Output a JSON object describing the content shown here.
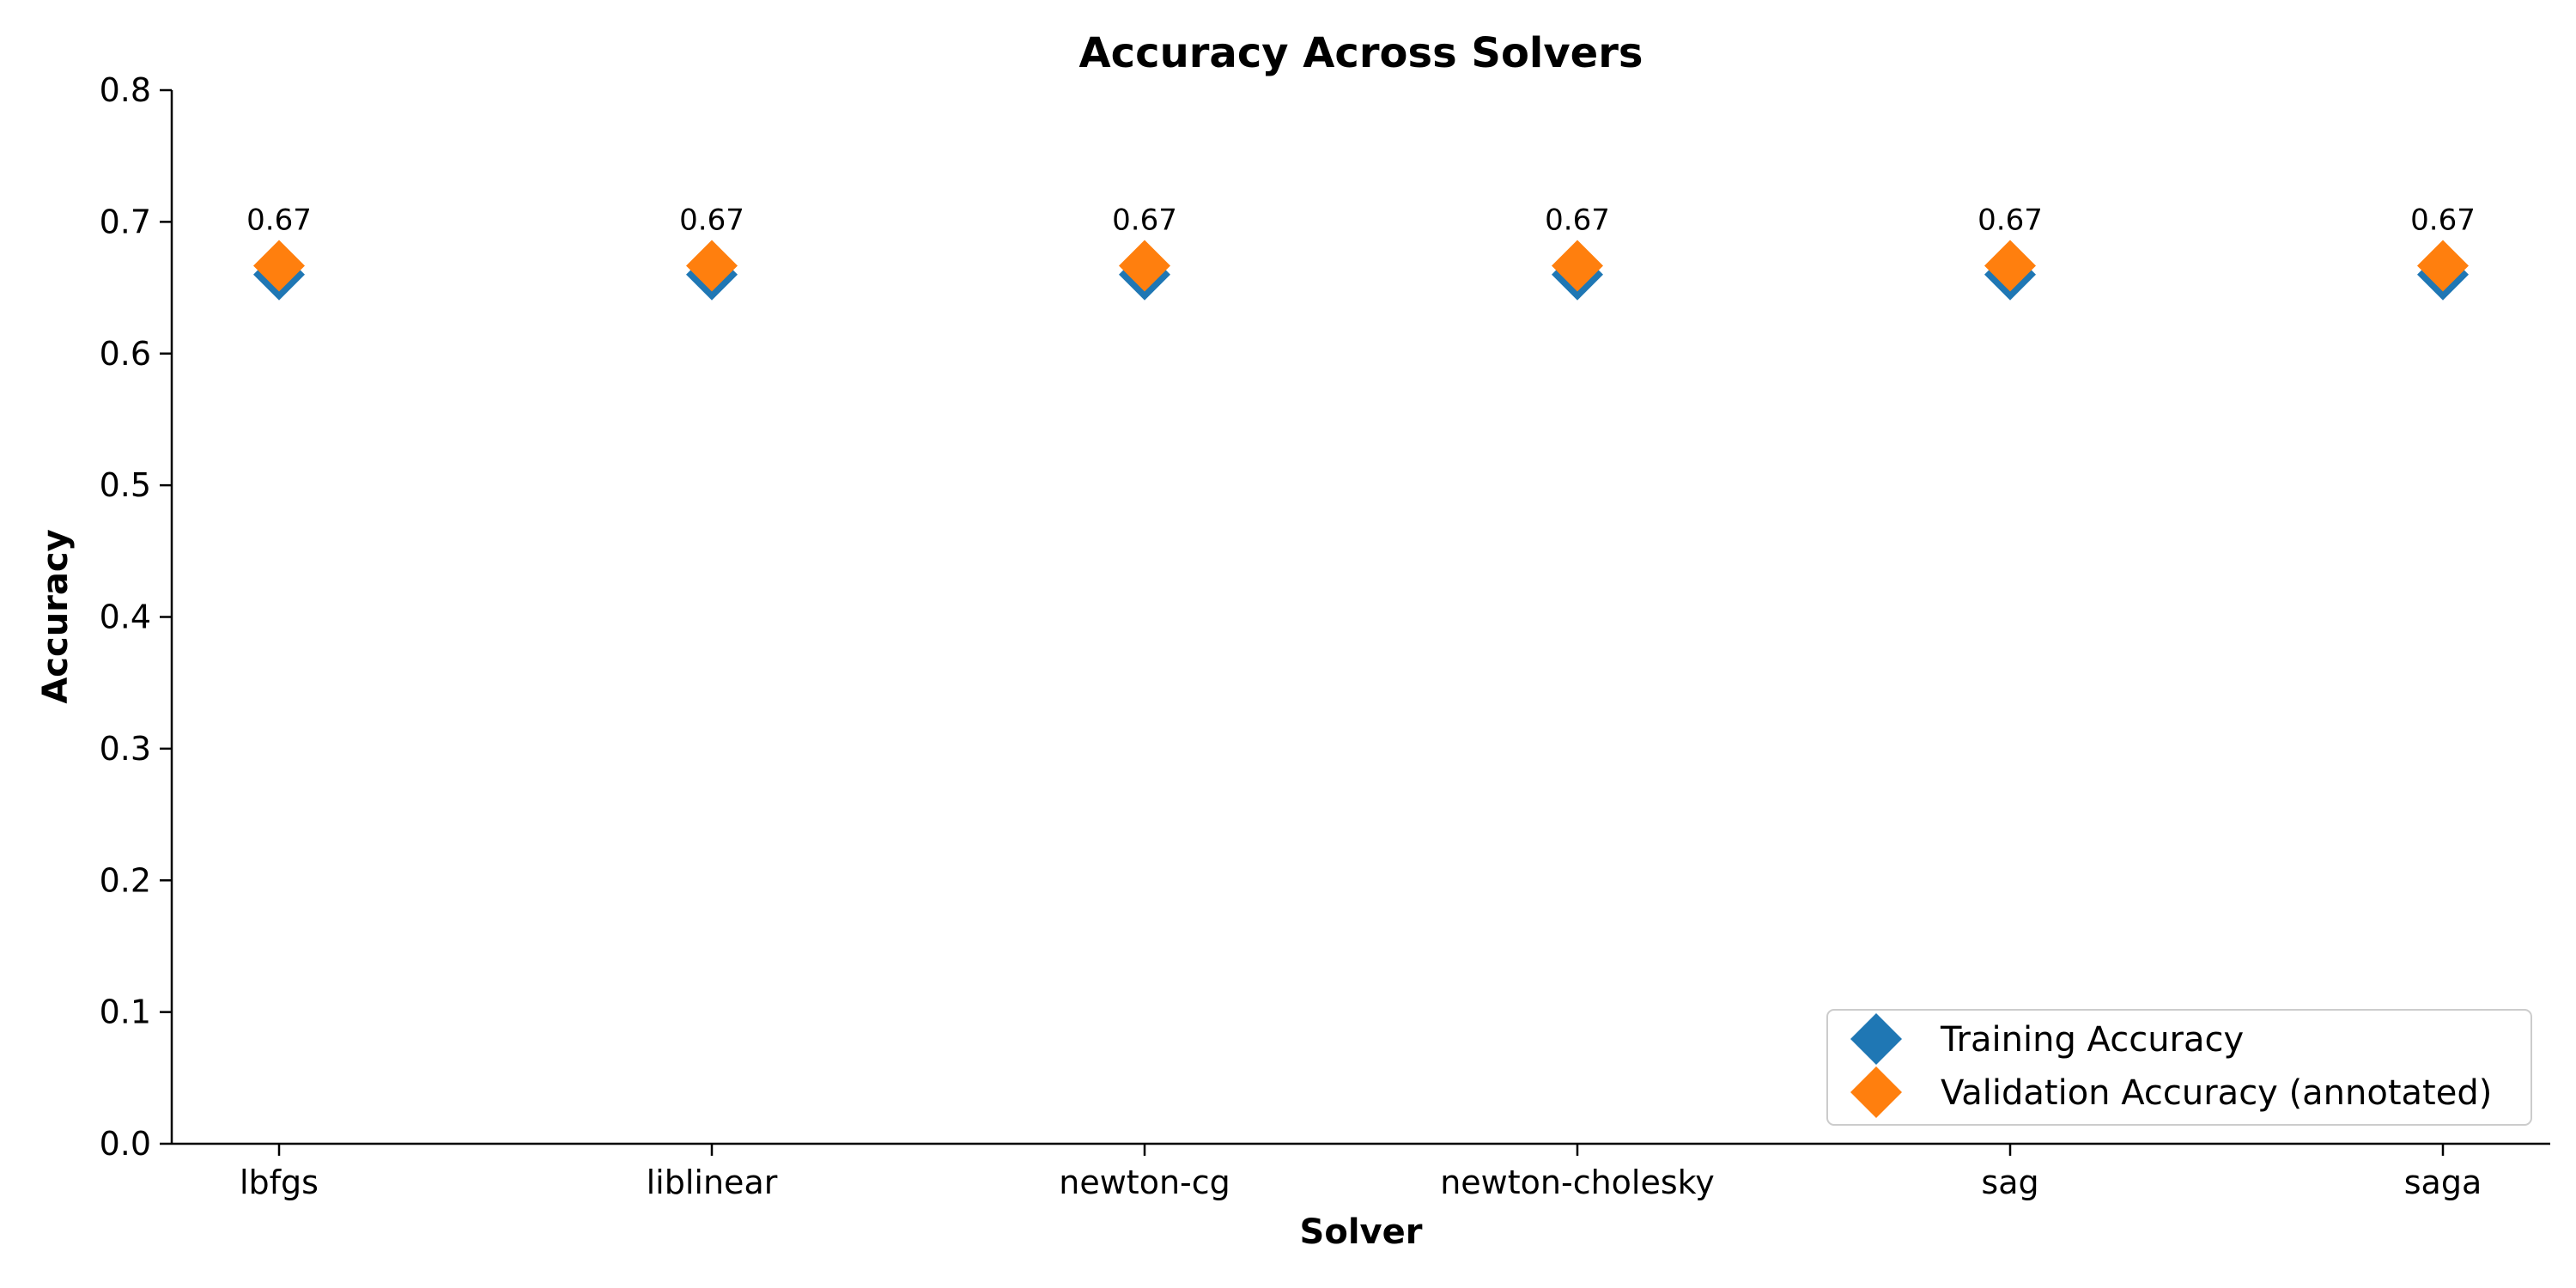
{
  "chart_data": {
    "type": "scatter",
    "title": "Accuracy Across Solvers",
    "xlabel": "Solver",
    "ylabel": "Accuracy",
    "categories": [
      "lbfgs",
      "liblinear",
      "newton-cg",
      "newton-cholesky",
      "sag",
      "saga"
    ],
    "series": [
      {
        "name": "Training Accuracy",
        "color": "#1f77b4",
        "marker": "diamond",
        "values": [
          0.66,
          0.66,
          0.66,
          0.66,
          0.66,
          0.66
        ]
      },
      {
        "name": "Validation Accuracy (annotated)",
        "color": "#ff7f0e",
        "marker": "diamond",
        "values": [
          0.6667,
          0.6667,
          0.6667,
          0.6667,
          0.6667,
          0.6667
        ],
        "data_labels": [
          "0.67",
          "0.67",
          "0.67",
          "0.67",
          "0.67",
          "0.67"
        ]
      }
    ],
    "ylim": [
      0,
      0.8
    ],
    "yticks": [
      0.0,
      0.1,
      0.2,
      0.3,
      0.4,
      0.5,
      0.6,
      0.7,
      0.8
    ],
    "ytick_labels": [
      "0.0",
      "0.1",
      "0.2",
      "0.3",
      "0.4",
      "0.5",
      "0.6",
      "0.7",
      "0.8"
    ],
    "grid": false,
    "legend_position": "bottom-right"
  }
}
